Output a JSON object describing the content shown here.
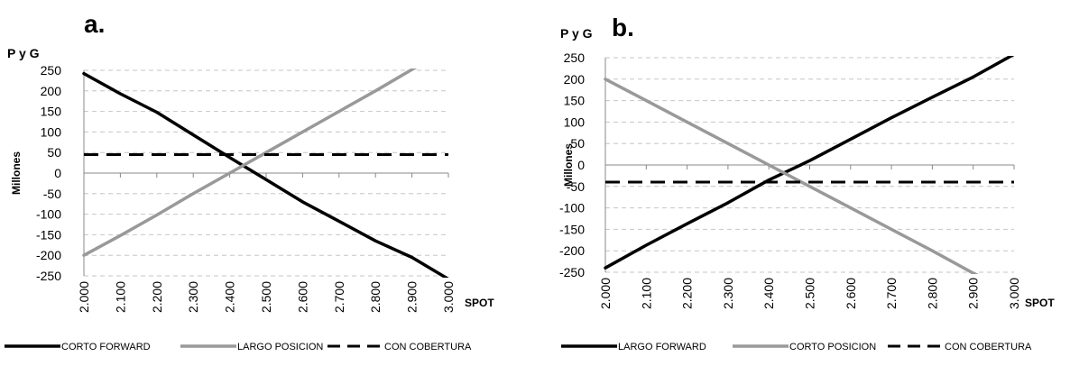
{
  "chart_data": [
    {
      "panel_label": "a.",
      "type": "line",
      "ylabel_top": "P y G",
      "ylabel": "Millones",
      "xlabel": "SPOT",
      "x": [
        2000,
        2100,
        2200,
        2300,
        2400,
        2500,
        2600,
        2700,
        2800,
        2900,
        3000
      ],
      "x_tick_labels": [
        "2.000",
        "2.100",
        "2.200",
        "2.300",
        "2.400",
        "2.500",
        "2.600",
        "2.700",
        "2.800",
        "2.900",
        "3.000"
      ],
      "ylim": [
        -250,
        250
      ],
      "y_ticks": [
        250,
        200,
        150,
        100,
        50,
        0,
        -50,
        -100,
        -150,
        -200,
        -250
      ],
      "grid": "horizontal dashed",
      "legend_position": "bottom",
      "series": [
        {
          "name": "CORTO FORWARD",
          "color": "#000000",
          "style": "solid",
          "values": [
            242,
            193,
            148,
            93,
            38,
            -16,
            -70,
            -117,
            -165,
            -205,
            -258
          ]
        },
        {
          "name": "LARGO POSICION",
          "color": "#999999",
          "style": "solid",
          "values": [
            -200,
            -152,
            -102,
            -50,
            0,
            50,
            100,
            150,
            200,
            252,
            300
          ]
        },
        {
          "name": "CON COBERTURA",
          "color": "#000000",
          "style": "dashed",
          "values": [
            45,
            45,
            45,
            45,
            45,
            45,
            45,
            45,
            45,
            45,
            45
          ]
        }
      ]
    },
    {
      "panel_label": "b.",
      "type": "line",
      "ylabel_top": "P y G",
      "ylabel": "Millones",
      "xlabel": "SPOT",
      "x": [
        2000,
        2100,
        2200,
        2300,
        2400,
        2500,
        2600,
        2700,
        2800,
        2900,
        3000
      ],
      "x_tick_labels": [
        "2.000",
        "2.100",
        "2.200",
        "2.300",
        "2.400",
        "2.500",
        "2.600",
        "2.700",
        "2.800",
        "2.900",
        "3.000"
      ],
      "ylim": [
        -250,
        250
      ],
      "y_ticks": [
        250,
        200,
        150,
        100,
        50,
        0,
        -50,
        -100,
        -150,
        -200,
        -250
      ],
      "grid": "horizontal dashed",
      "legend_position": "bottom",
      "series": [
        {
          "name": "LARGO FORWARD",
          "color": "#000000",
          "style": "solid",
          "values": [
            -240,
            -187,
            -137,
            -88,
            -35,
            10,
            60,
            110,
            158,
            205,
            258
          ]
        },
        {
          "name": "CORTO POSICION",
          "color": "#999999",
          "style": "solid",
          "values": [
            200,
            150,
            100,
            50,
            0,
            -50,
            -100,
            -150,
            -200,
            -252,
            -300
          ]
        },
        {
          "name": "CON COBERTURA",
          "color": "#000000",
          "style": "dashed",
          "values": [
            -40,
            -40,
            -40,
            -40,
            -40,
            -40,
            -40,
            -40,
            -40,
            -40,
            -40
          ]
        }
      ]
    }
  ]
}
